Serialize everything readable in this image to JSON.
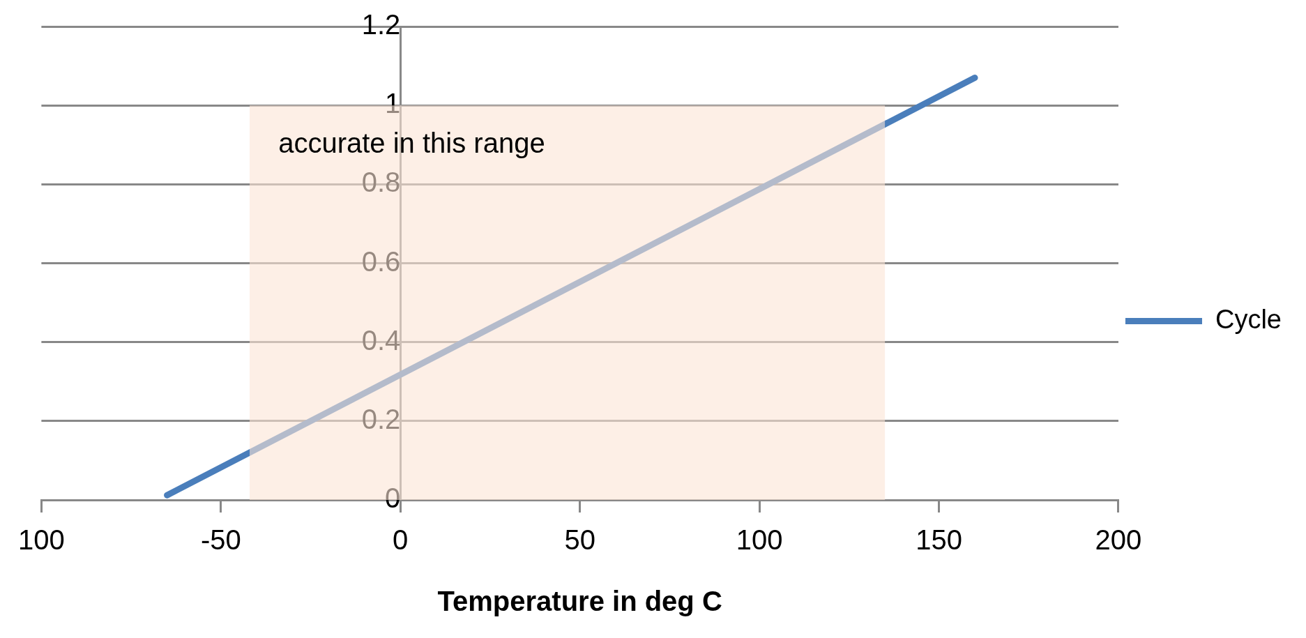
{
  "chart_data": {
    "type": "line",
    "xlabel": "Temperature in deg C",
    "xlim": [
      -100,
      200
    ],
    "xticks": [
      {
        "value": -100,
        "label": "100"
      },
      -50,
      0,
      50,
      100,
      150,
      200
    ],
    "ylim": [
      0,
      1.2
    ],
    "yticks": [
      0,
      0.2,
      0.4,
      0.6,
      0.8,
      1,
      1.2
    ],
    "grid": "y",
    "legend": "right",
    "marker": "none",
    "line_style": "solid",
    "series": [
      {
        "name": "Cycle",
        "color": "#4a7ebb",
        "x": [
          -65,
          160
        ],
        "values": [
          0.012,
          1.07
        ]
      },
      {
        "type": "area",
        "color": "#fbe5d6",
        "x": [
          -42,
          135
        ],
        "values": [
          1,
          1
        ]
      }
    ],
    "annotations": [
      "accurate in this range"
    ]
  }
}
